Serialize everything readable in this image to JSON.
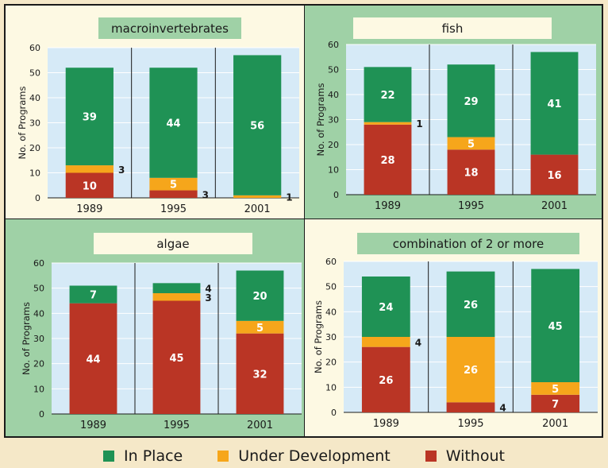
{
  "colors": {
    "in_place": "#1f9255",
    "under_development": "#f6a61b",
    "without": "#ba3525",
    "panel_cream": "#fdf9e3",
    "panel_green": "#9fd1a6",
    "plot_bg": "#d6eaf7"
  },
  "legend": {
    "in_place": "In Place",
    "under_development": "Under Development",
    "without": "Without"
  },
  "chart_data": [
    {
      "type": "bar",
      "stacked": true,
      "title": "macroinvertebrates",
      "ylabel": "No. of Programs",
      "ylim": [
        0,
        60
      ],
      "yticks": [
        0,
        10,
        20,
        30,
        40,
        50,
        60
      ],
      "categories": [
        "1989",
        "1995",
        "2001"
      ],
      "series": [
        {
          "name": "Without",
          "values": [
            10,
            3,
            0
          ]
        },
        {
          "name": "Under Development",
          "values": [
            3,
            5,
            1
          ]
        },
        {
          "name": "In Place",
          "values": [
            39,
            44,
            56
          ]
        }
      ],
      "labels": [
        [
          {
            "text": "10",
            "pos": "in"
          },
          {
            "text": "3",
            "pos": "right"
          },
          {
            "text": "39",
            "pos": "in"
          }
        ],
        [
          {
            "text": "3",
            "pos": "right"
          },
          {
            "text": "5",
            "pos": "in"
          },
          {
            "text": "44",
            "pos": "in"
          }
        ],
        [
          {
            "text": "",
            "pos": "none"
          },
          {
            "text": "1",
            "pos": "right"
          },
          {
            "text": "56",
            "pos": "in"
          }
        ]
      ]
    },
    {
      "type": "bar",
      "stacked": true,
      "title": "fish",
      "ylabel": "No. of Programs",
      "ylim": [
        0,
        60
      ],
      "yticks": [
        0,
        10,
        20,
        30,
        40,
        50,
        60
      ],
      "categories": [
        "1989",
        "1995",
        "2001"
      ],
      "series": [
        {
          "name": "Without",
          "values": [
            28,
            18,
            16
          ]
        },
        {
          "name": "Under Development",
          "values": [
            1,
            5,
            0
          ]
        },
        {
          "name": "In Place",
          "values": [
            22,
            29,
            41
          ]
        }
      ],
      "labels": [
        [
          {
            "text": "28",
            "pos": "in"
          },
          {
            "text": "1",
            "pos": "right"
          },
          {
            "text": "22",
            "pos": "in"
          }
        ],
        [
          {
            "text": "18",
            "pos": "in"
          },
          {
            "text": "5",
            "pos": "in"
          },
          {
            "text": "29",
            "pos": "in"
          }
        ],
        [
          {
            "text": "16",
            "pos": "in"
          },
          {
            "text": "",
            "pos": "none"
          },
          {
            "text": "41",
            "pos": "in"
          }
        ]
      ]
    },
    {
      "type": "bar",
      "stacked": true,
      "title": "algae",
      "ylabel": "No. of Programs",
      "ylim": [
        0,
        60
      ],
      "yticks": [
        0,
        10,
        20,
        30,
        40,
        50,
        60
      ],
      "categories": [
        "1989",
        "1995",
        "2001"
      ],
      "series": [
        {
          "name": "Without",
          "values": [
            44,
            45,
            32
          ]
        },
        {
          "name": "Under Development",
          "values": [
            0,
            3,
            5
          ]
        },
        {
          "name": "In Place",
          "values": [
            7,
            4,
            20
          ]
        }
      ],
      "labels": [
        [
          {
            "text": "44",
            "pos": "in"
          },
          {
            "text": "",
            "pos": "none"
          },
          {
            "text": "7",
            "pos": "in"
          }
        ],
        [
          {
            "text": "45",
            "pos": "in"
          },
          {
            "text": "3",
            "pos": "right"
          },
          {
            "text": "4",
            "pos": "right"
          }
        ],
        [
          {
            "text": "32",
            "pos": "in"
          },
          {
            "text": "5",
            "pos": "in"
          },
          {
            "text": "20",
            "pos": "in"
          }
        ]
      ]
    },
    {
      "type": "bar",
      "stacked": true,
      "title": "combination of 2 or more",
      "ylabel": "No. of Programs",
      "ylim": [
        0,
        60
      ],
      "yticks": [
        0,
        10,
        20,
        30,
        40,
        50,
        60
      ],
      "categories": [
        "1989",
        "1995",
        "2001"
      ],
      "series": [
        {
          "name": "Without",
          "values": [
            26,
            4,
            7
          ]
        },
        {
          "name": "Under Development",
          "values": [
            4,
            26,
            5
          ]
        },
        {
          "name": "In Place",
          "values": [
            24,
            26,
            45
          ]
        }
      ],
      "labels": [
        [
          {
            "text": "26",
            "pos": "in"
          },
          {
            "text": "4",
            "pos": "right"
          },
          {
            "text": "24",
            "pos": "in"
          }
        ],
        [
          {
            "text": "4",
            "pos": "right"
          },
          {
            "text": "26",
            "pos": "in"
          },
          {
            "text": "26",
            "pos": "in"
          }
        ],
        [
          {
            "text": "7",
            "pos": "in"
          },
          {
            "text": "5",
            "pos": "in"
          },
          {
            "text": "45",
            "pos": "in"
          }
        ]
      ]
    }
  ]
}
